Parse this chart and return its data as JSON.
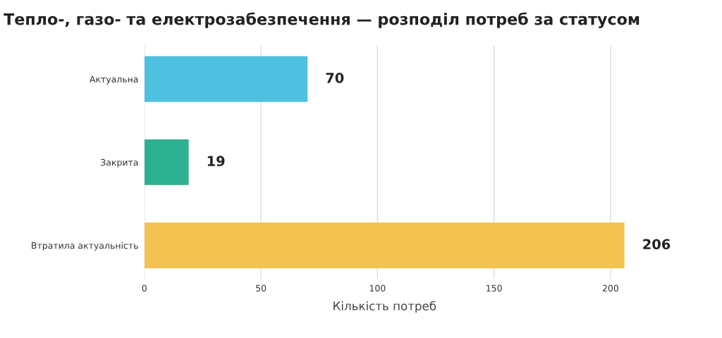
{
  "chart_data": {
    "type": "bar",
    "orientation": "horizontal",
    "title": "Тепло-, газо- та електрозабезпечення — розподіл потреб за статусом",
    "xlabel": "Кількість потреб",
    "categories": [
      "Актуальна",
      "Закрита",
      "Втратила актуальність"
    ],
    "values": [
      70,
      19,
      206
    ],
    "colors": [
      "#4fc1e0",
      "#2db08f",
      "#f3c251"
    ],
    "xlim": [
      0,
      206
    ],
    "xticks": [
      0,
      50,
      100,
      150,
      200
    ],
    "grid": "x",
    "data_labels": true,
    "legend": false
  }
}
